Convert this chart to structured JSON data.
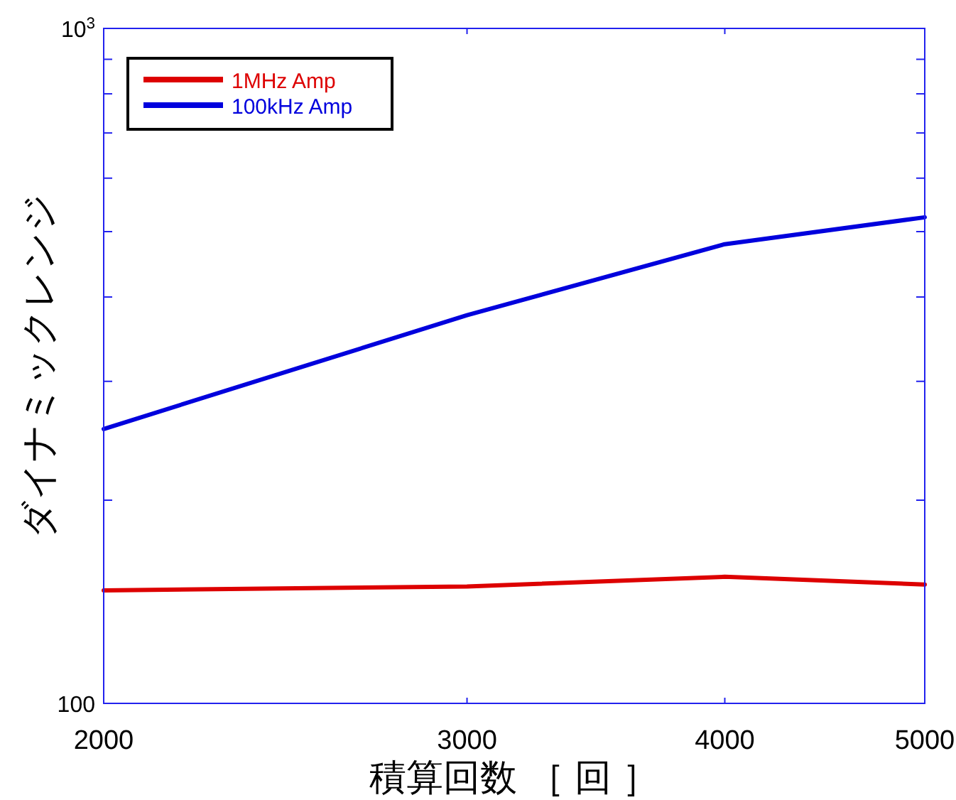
{
  "chart_data": {
    "type": "line",
    "xlabel": "積算回数 ［ 回 ］",
    "ylabel": "ダイナミックレンジ",
    "x": [
      2000,
      3000,
      4000,
      5000
    ],
    "series": [
      {
        "name": "1MHz Amp",
        "color": "#dd0000",
        "values": [
          147,
          149,
          154,
          150
        ]
      },
      {
        "name": "100kHz Amp",
        "color": "#0000dd",
        "values": [
          255,
          376,
          479,
          525
        ]
      }
    ],
    "log": "xy",
    "xlim": [
      2000,
      5000
    ],
    "xticks": [
      2000,
      3000,
      4000,
      5000
    ],
    "ylim": [
      100,
      1000
    ],
    "yticks": [
      100,
      {
        "value": 200,
        "label": null
      },
      {
        "value": 300,
        "label": null
      },
      {
        "value": 400,
        "label": null
      },
      {
        "value": 500,
        "label": null
      },
      {
        "value": 600,
        "label": null
      },
      {
        "value": 700,
        "label": null
      },
      {
        "value": 800,
        "label": null
      },
      {
        "value": 900,
        "label": null
      },
      {
        "value": 1000,
        "label": "10$^{3}$"
      }
    ],
    "legend": "top left",
    "line_style": "solid",
    "grid": false
  }
}
